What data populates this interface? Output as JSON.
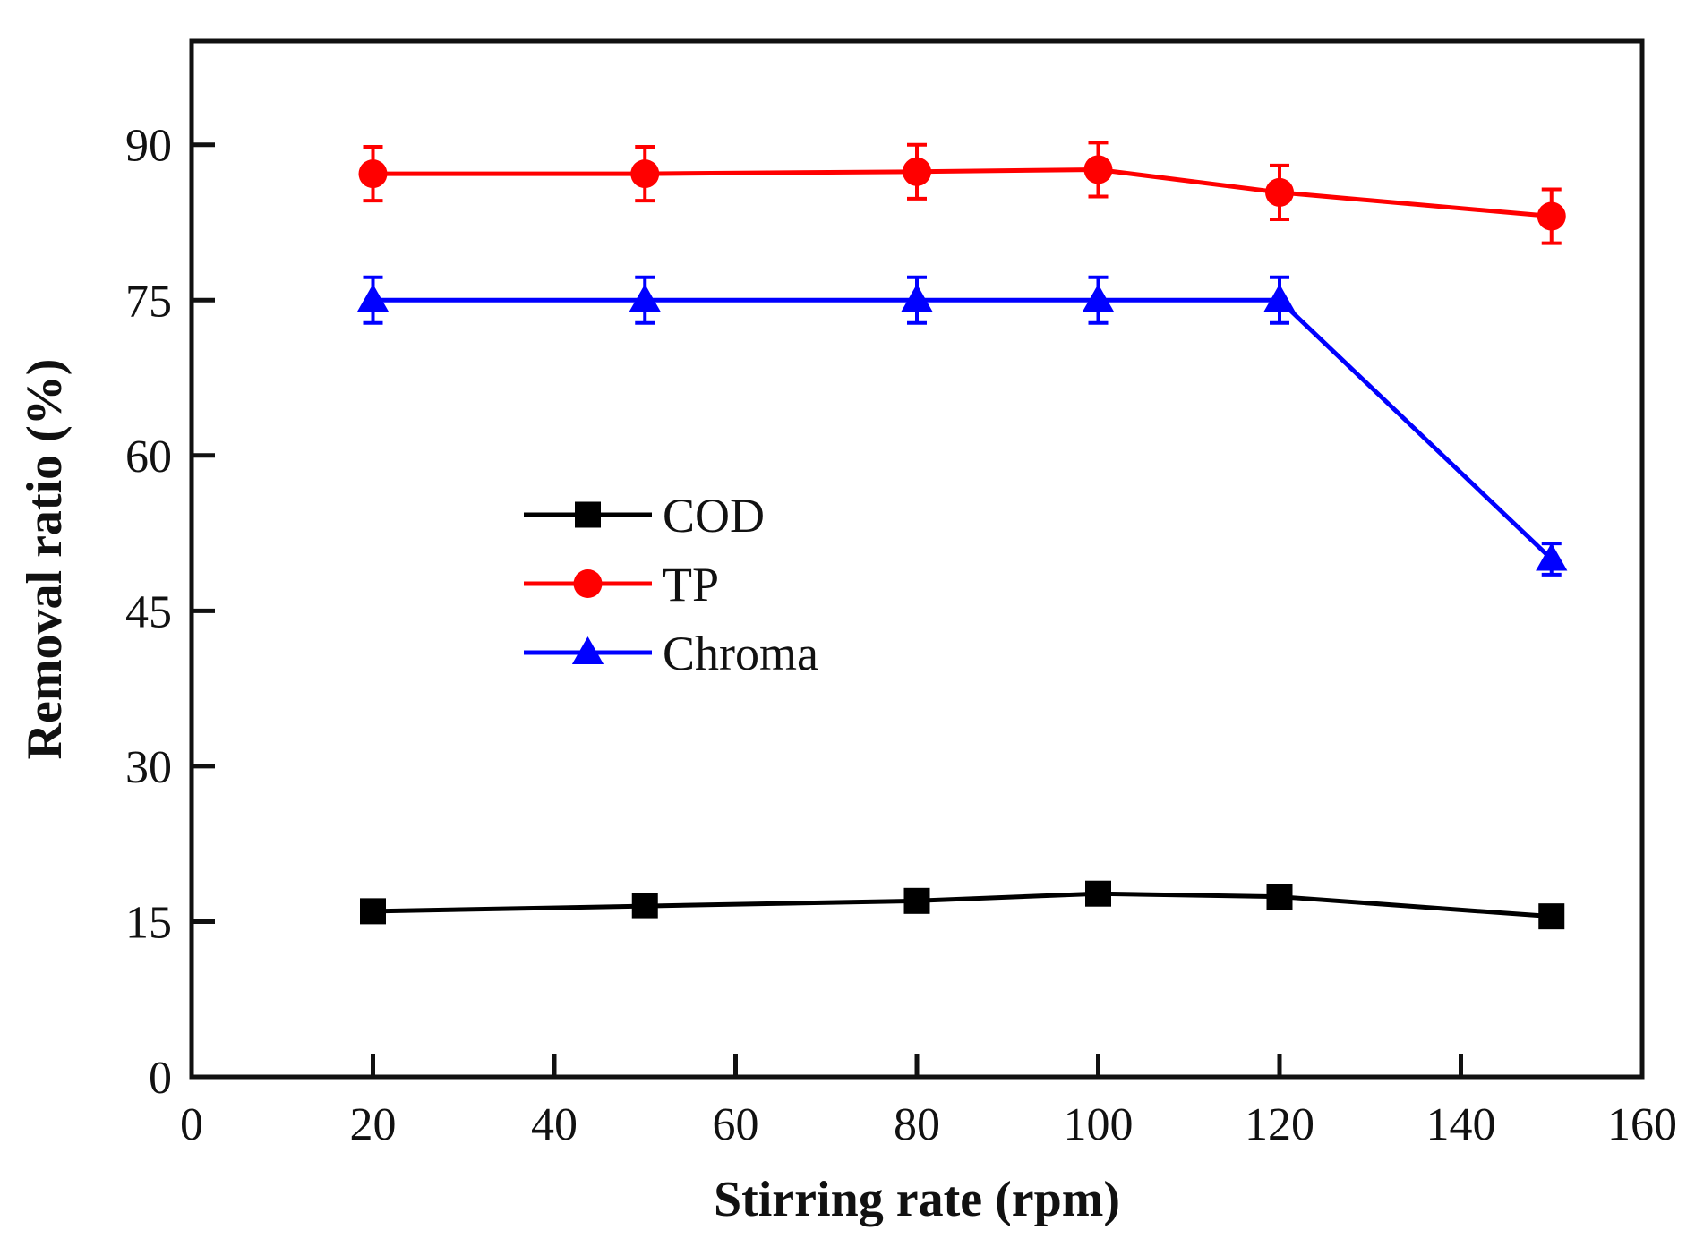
{
  "chart_data": {
    "type": "line",
    "title": "",
    "xlabel": "Stirring rate (rpm)",
    "ylabel": "Removal ratio (%)",
    "xlim": [
      0,
      160
    ],
    "ylim": [
      0,
      100
    ],
    "x_ticks": [
      0,
      20,
      40,
      60,
      80,
      100,
      120,
      140,
      160
    ],
    "y_ticks": [
      0,
      15,
      30,
      45,
      60,
      75,
      90
    ],
    "legend_position": "center-left",
    "grid": false,
    "x": [
      20,
      50,
      80,
      100,
      120,
      150
    ],
    "series": [
      {
        "name": "COD",
        "color": "#000000",
        "marker": "square",
        "values": [
          16.0,
          16.5,
          17.0,
          17.7,
          17.4,
          15.5
        ],
        "errors": [
          0.7,
          0.7,
          0.7,
          0.7,
          0.7,
          0.7
        ]
      },
      {
        "name": "TP",
        "color": "#ff0000",
        "marker": "circle",
        "values": [
          87.2,
          87.2,
          87.4,
          87.6,
          85.4,
          83.1
        ],
        "errors": [
          2.6,
          2.6,
          2.6,
          2.6,
          2.6,
          2.6
        ]
      },
      {
        "name": "Chroma",
        "color": "#0000ff",
        "marker": "triangle",
        "values": [
          75.0,
          75.0,
          75.0,
          75.0,
          75.0,
          50.0
        ],
        "errors": [
          2.2,
          2.2,
          2.2,
          2.2,
          2.2,
          1.5
        ]
      }
    ]
  }
}
